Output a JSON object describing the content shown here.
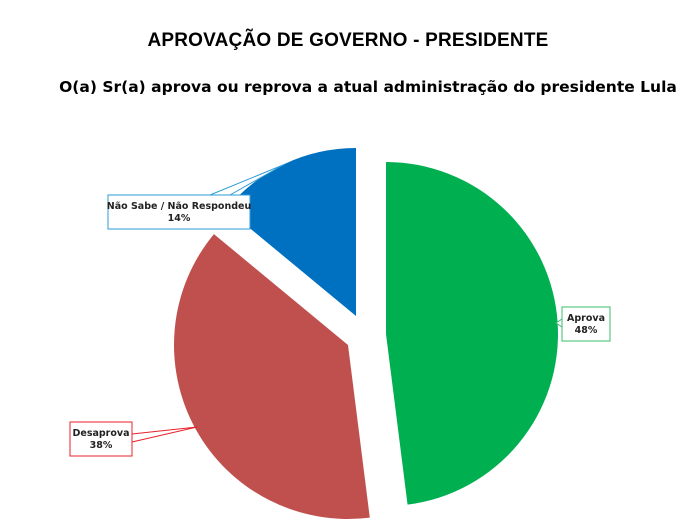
{
  "chart_data": {
    "type": "pie",
    "title": "APROVAÇÃO DE GOVERNO - PRESIDENTE",
    "subtitle": "O(a) Sr(a) aprova ou reprova a atual administração do presidente Lula",
    "categories": [
      "Aprova",
      "Desaprova",
      "Não Sabe / Não Respondeu"
    ],
    "values": [
      48,
      38,
      14
    ],
    "unit": "%",
    "colors": [
      "#00B050",
      "#C0504D",
      "#0070C0"
    ],
    "labels": [
      "Aprova\n48%",
      "Desaprova\n38%",
      "Não Sabe / Não Respondeu\n14%"
    ],
    "start_angle": 0,
    "direction": "clockwise",
    "exploded": true,
    "legend": "none"
  },
  "header": {
    "title": "APROVAÇÃO DE GOVERNO - PRESIDENTE",
    "subtitle": "O(a) Sr(a) aprova ou reprova a atual administração do presidente Lula"
  }
}
